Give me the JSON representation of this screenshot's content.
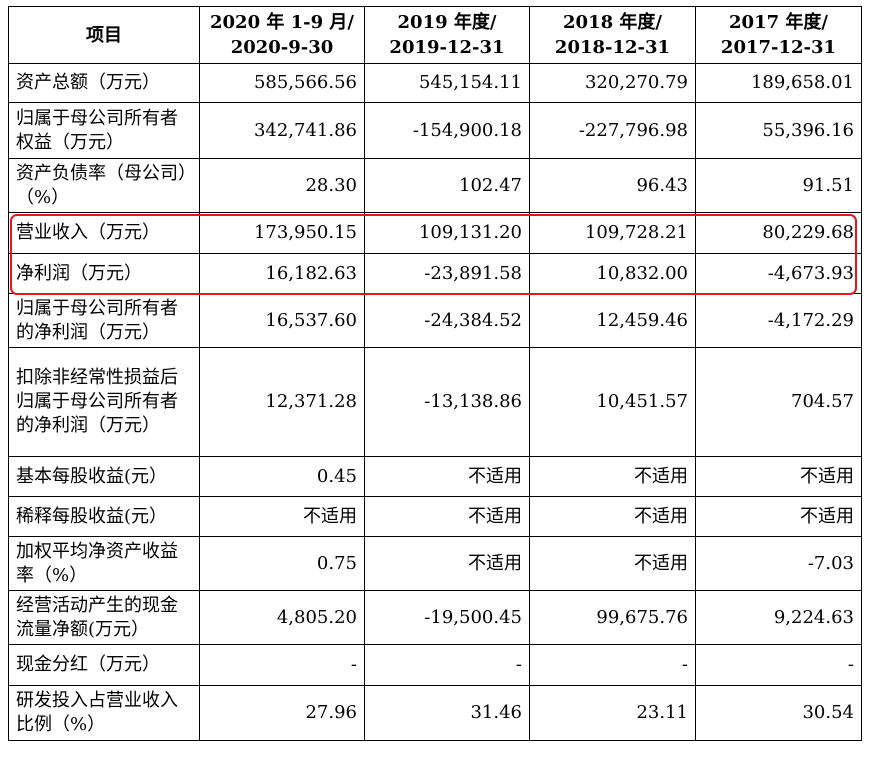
{
  "table": {
    "headers": [
      {
        "line1": "项目",
        "line2": ""
      },
      {
        "line1": "2020 年 1-9 月/",
        "line2": "2020-9-30"
      },
      {
        "line1": "2019 年度/",
        "line2": "2019-12-31"
      },
      {
        "line1": "2018 年度/",
        "line2": "2018-12-31"
      },
      {
        "line1": "2017 年度/",
        "line2": "2017-12-31"
      }
    ],
    "rows": [
      {
        "label": "资产总额（万元）",
        "values": [
          "585,566.56",
          "545,154.11",
          "320,270.79",
          "189,658.01"
        ]
      },
      {
        "label": "归属于母公司所有者权益（万元）",
        "values": [
          "342,741.86",
          "-154,900.18",
          "-227,796.98",
          "55,396.16"
        ]
      },
      {
        "label": "资产负债率（母公司）（%）",
        "values": [
          "28.30",
          "102.47",
          "96.43",
          "91.51"
        ]
      },
      {
        "label": "营业收入（万元）",
        "values": [
          "173,950.15",
          "109,131.20",
          "109,728.21",
          "80,229.68"
        ]
      },
      {
        "label": "净利润（万元）",
        "values": [
          "16,182.63",
          "-23,891.58",
          "10,832.00",
          "-4,673.93"
        ]
      },
      {
        "label": "归属于母公司所有者的净利润（万元）",
        "values": [
          "16,537.60",
          "-24,384.52",
          "12,459.46",
          "-4,172.29"
        ]
      },
      {
        "label": "扣除非经常性损益后归属于母公司所有者的净利润（万元）",
        "values": [
          "12,371.28",
          "-13,138.86",
          "10,451.57",
          "704.57"
        ]
      },
      {
        "label": "基本每股收益(元）",
        "values": [
          "0.45",
          "不适用",
          "不适用",
          "不适用"
        ]
      },
      {
        "label": "稀释每股收益(元）",
        "values": [
          "不适用",
          "不适用",
          "不适用",
          "不适用"
        ]
      },
      {
        "label": "加权平均净资产收益率（%）",
        "values": [
          "0.75",
          "不适用",
          "不适用",
          "-7.03"
        ]
      },
      {
        "label": "经营活动产生的现金流量净额(万元）",
        "values": [
          "4,805.20",
          "-19,500.45",
          "99,675.76",
          "9,224.63"
        ]
      },
      {
        "label": "现金分红（万元）",
        "values": [
          "-",
          "-",
          "-",
          "-"
        ]
      },
      {
        "label": "研发投入占营业收入比例（%）",
        "values": [
          "27.96",
          "31.46",
          "23.11",
          "30.54"
        ]
      }
    ]
  },
  "highlight_color": "#e8141e"
}
